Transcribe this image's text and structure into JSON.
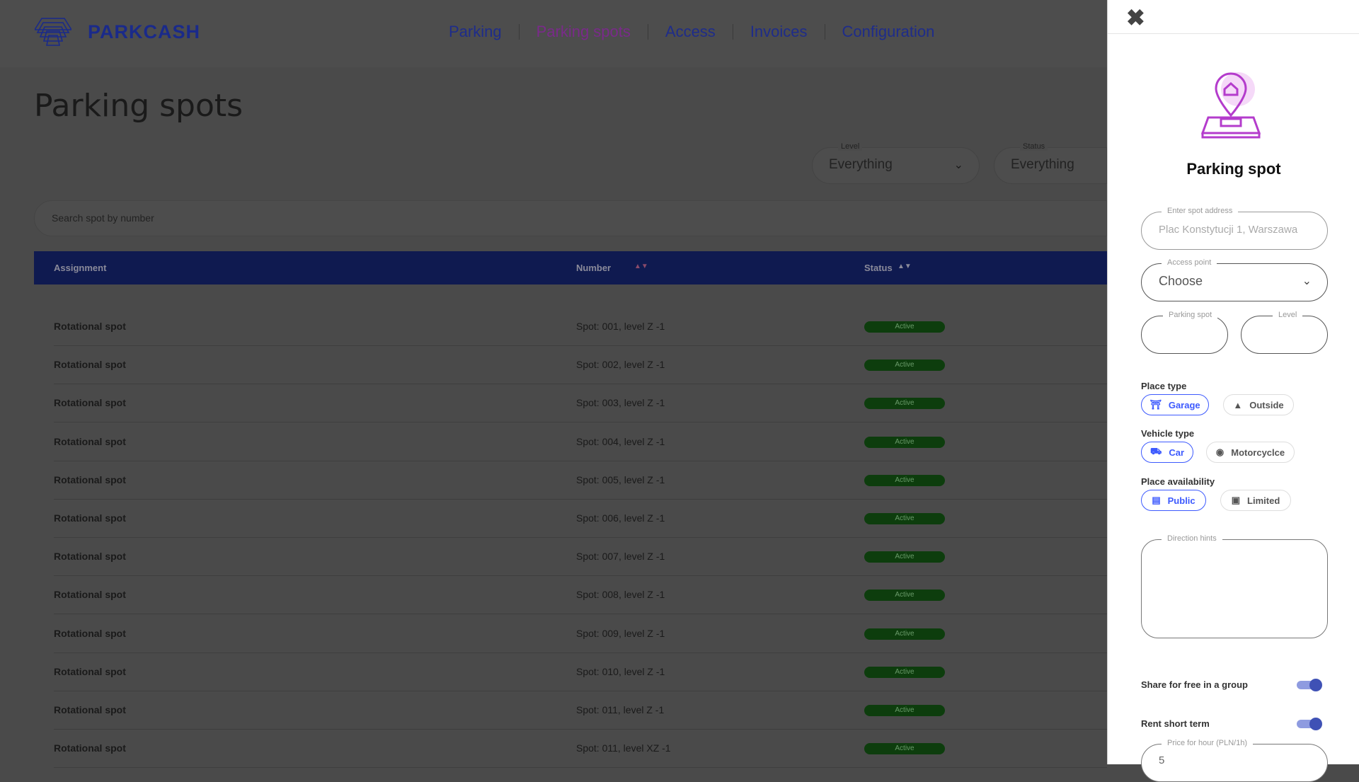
{
  "header": {
    "brand": "PARKCASH",
    "nav": [
      "Parking",
      "Parking spots",
      "Access",
      "Invoices",
      "Configuration"
    ],
    "active_nav": "Parking spots"
  },
  "page": {
    "title": "Parking spots",
    "filters": {
      "level": {
        "label": "Level",
        "value": "Everything"
      },
      "status": {
        "label": "Status",
        "value": "Everything"
      }
    },
    "search_placeholder": "Search spot by number",
    "table": {
      "columns": [
        "Assignment",
        "Number",
        "Status"
      ],
      "rows": [
        {
          "assignment": "Rotational spot",
          "number": "Spot: 001, level Z -1",
          "status": "Active"
        },
        {
          "assignment": "Rotational spot",
          "number": "Spot: 002, level Z -1",
          "status": "Active"
        },
        {
          "assignment": "Rotational spot",
          "number": "Spot: 003, level Z -1",
          "status": "Active"
        },
        {
          "assignment": "Rotational spot",
          "number": "Spot: 004, level Z -1",
          "status": "Active"
        },
        {
          "assignment": "Rotational spot",
          "number": "Spot: 005, level Z -1",
          "status": "Active"
        },
        {
          "assignment": "Rotational spot",
          "number": "Spot: 006, level Z -1",
          "status": "Active"
        },
        {
          "assignment": "Rotational spot",
          "number": "Spot: 007, level Z -1",
          "status": "Active"
        },
        {
          "assignment": "Rotational spot",
          "number": "Spot: 008, level Z -1",
          "status": "Active"
        },
        {
          "assignment": "Rotational spot",
          "number": "Spot: 009, level Z -1",
          "status": "Active"
        },
        {
          "assignment": "Rotational spot",
          "number": "Spot: 010, level Z -1",
          "status": "Active"
        },
        {
          "assignment": "Rotational spot",
          "number": "Spot: 011, level Z -1",
          "status": "Active"
        },
        {
          "assignment": "Rotational spot",
          "number": "Spot: 011, level XZ -1",
          "status": "Active"
        }
      ]
    }
  },
  "panel": {
    "title": "Parking spot",
    "address": {
      "label": "Enter spot address",
      "placeholder": "Plac Konstytucji 1, Warszawa"
    },
    "access_point": {
      "label": "Access point",
      "value": "Choose"
    },
    "parking_spot": {
      "label": "Parking spot",
      "value": ""
    },
    "level": {
      "label": "Level",
      "value": ""
    },
    "place_type": {
      "label": "Place type",
      "options": [
        "Garage",
        "Outside"
      ],
      "selected": "Garage"
    },
    "vehicle_type": {
      "label": "Vehicle type",
      "options": [
        "Car",
        "Motorcyclce"
      ],
      "selected": "Car"
    },
    "availability": {
      "label": "Place availability",
      "options": [
        "Public",
        "Limited"
      ],
      "selected": "Public"
    },
    "direction_hints": {
      "label": "Direction hints",
      "value": ""
    },
    "share_free": {
      "label": "Share for free in a group",
      "on": true
    },
    "rent_short": {
      "label": "Rent short term",
      "on": true
    },
    "price": {
      "label": "Price for hour (PLN/1h)",
      "value": "5"
    }
  },
  "colors": {
    "brand": "#1a2a9c",
    "accent": "#9b2fae",
    "chip_selected": "#3d5afe",
    "active_badge": "#1c8a1c"
  }
}
